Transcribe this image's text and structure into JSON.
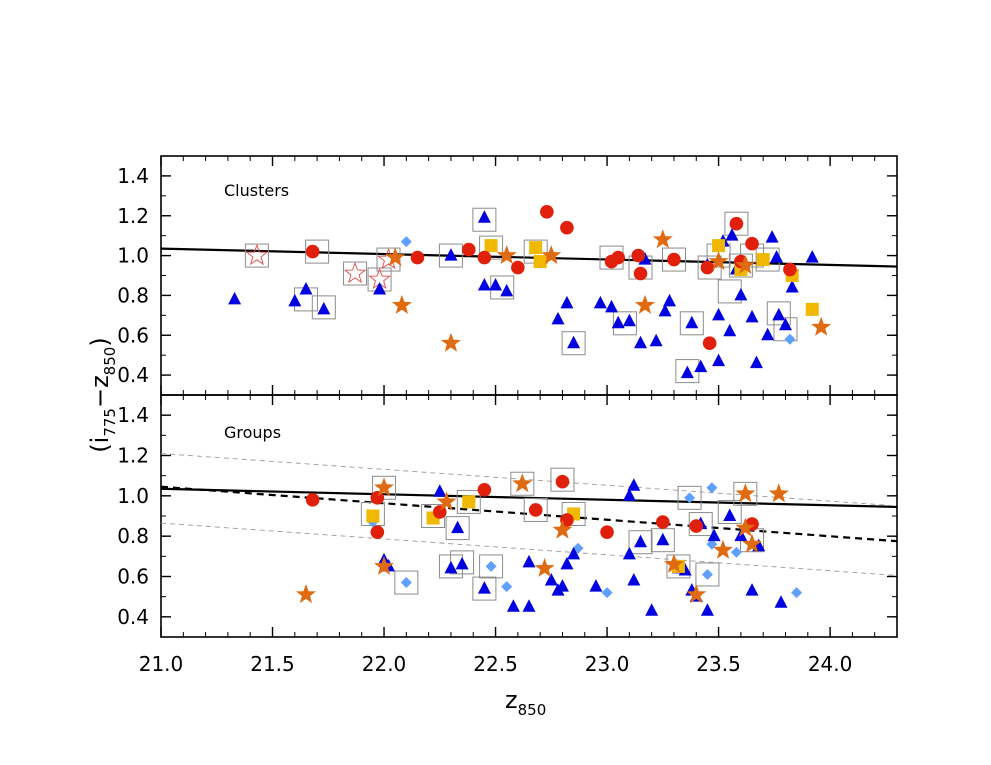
{
  "chart_data": {
    "type": "scatter",
    "xlabel": "z",
    "xlabel_sub": "850",
    "ylabel_parts": [
      "(i",
      "775",
      "−z",
      "850",
      ")"
    ],
    "xlim": [
      21.0,
      24.3
    ],
    "ylim": [
      0.3,
      1.5
    ],
    "xticks": [
      "21.0",
      "21.5",
      "22.0",
      "22.5",
      "23.0",
      "23.5",
      "24.0"
    ],
    "yticks": [
      "0.4",
      "0.6",
      "0.8",
      "1.0",
      "1.2",
      "1.4"
    ],
    "colors": {
      "triangle": "#0000e0",
      "circle": "#e0200a",
      "star": "#e06a10",
      "square": "#f0b800",
      "diamond": "#5fa0ff",
      "box": "#8c8c8c",
      "hollow_star": "#e05a5a"
    },
    "panels": [
      {
        "label": "Clusters",
        "lines": [
          {
            "name": "cluster-fit",
            "style": "solid",
            "x": [
              21.0,
              24.3
            ],
            "y": [
              1.035,
              0.945
            ]
          }
        ],
        "points": {
          "triangle": [
            [
              21.33,
              0.78
            ],
            [
              21.6,
              0.77
            ],
            [
              21.65,
              0.83
            ],
            [
              21.73,
              0.73
            ],
            [
              21.98,
              0.83
            ],
            [
              22.3,
              1.0
            ],
            [
              22.45,
              1.19
            ],
            [
              22.45,
              0.85
            ],
            [
              22.5,
              0.85
            ],
            [
              22.55,
              0.82
            ],
            [
              22.78,
              0.68
            ],
            [
              22.82,
              0.76
            ],
            [
              22.85,
              0.56
            ],
            [
              22.97,
              0.76
            ],
            [
              23.02,
              0.74
            ],
            [
              23.05,
              0.66
            ],
            [
              23.1,
              0.67
            ],
            [
              23.15,
              0.56
            ],
            [
              23.17,
              0.98
            ],
            [
              23.22,
              0.57
            ],
            [
              23.26,
              0.72
            ],
            [
              23.28,
              0.77
            ],
            [
              23.36,
              0.41
            ],
            [
              23.38,
              0.66
            ],
            [
              23.42,
              0.44
            ],
            [
              23.45,
              0.95
            ],
            [
              23.5,
              0.7
            ],
            [
              23.52,
              1.07
            ],
            [
              23.55,
              0.62
            ],
            [
              23.56,
              1.1
            ],
            [
              23.58,
              0.93
            ],
            [
              23.6,
              0.8
            ],
            [
              23.65,
              0.69
            ],
            [
              23.67,
              0.46
            ],
            [
              23.72,
              0.6
            ],
            [
              23.74,
              1.09
            ],
            [
              23.76,
              0.99
            ],
            [
              23.77,
              0.7
            ],
            [
              23.8,
              0.65
            ],
            [
              23.83,
              0.84
            ],
            [
              23.92,
              0.99
            ],
            [
              23.5,
              0.47
            ]
          ],
          "circle": [
            [
              21.68,
              1.02
            ],
            [
              22.15,
              0.99
            ],
            [
              22.38,
              1.03
            ],
            [
              22.45,
              0.99
            ],
            [
              22.6,
              0.94
            ],
            [
              22.73,
              1.22
            ],
            [
              22.82,
              1.14
            ],
            [
              23.02,
              0.97
            ],
            [
              23.05,
              0.99
            ],
            [
              23.14,
              1.0
            ],
            [
              23.15,
              0.91
            ],
            [
              23.3,
              0.98
            ],
            [
              23.46,
              0.56
            ],
            [
              23.58,
              1.16
            ],
            [
              23.6,
              0.97
            ],
            [
              23.65,
              1.06
            ],
            [
              23.82,
              0.93
            ],
            [
              23.45,
              0.94
            ]
          ],
          "star": [
            [
              22.05,
              0.99
            ],
            [
              22.08,
              0.75
            ],
            [
              22.3,
              0.56
            ],
            [
              22.55,
              1.0
            ],
            [
              22.75,
              1.0
            ],
            [
              23.17,
              0.75
            ],
            [
              23.25,
              1.08
            ],
            [
              23.5,
              0.97
            ],
            [
              23.62,
              0.95
            ],
            [
              23.96,
              0.64
            ]
          ],
          "square": [
            [
              22.48,
              1.05
            ],
            [
              22.68,
              1.04
            ],
            [
              22.7,
              0.97
            ],
            [
              23.5,
              1.05
            ],
            [
              23.6,
              0.93
            ],
            [
              23.7,
              0.98
            ],
            [
              23.83,
              0.9
            ],
            [
              23.92,
              0.73
            ]
          ],
          "diamond": [
            [
              22.1,
              1.07
            ],
            [
              23.82,
              0.58
            ]
          ],
          "hollow_star": [
            [
              21.43,
              1.0
            ],
            [
              21.87,
              0.91
            ],
            [
              21.98,
              0.88
            ],
            [
              22.02,
              0.98
            ]
          ],
          "box": [
            [
              21.43,
              1.0
            ],
            [
              21.7,
              1.02
            ],
            [
              21.65,
              0.78
            ],
            [
              21.73,
              0.74
            ],
            [
              21.87,
              0.91
            ],
            [
              21.98,
              0.88
            ],
            [
              22.02,
              0.98
            ],
            [
              22.3,
              1.0
            ],
            [
              22.45,
              1.18
            ],
            [
              22.48,
              1.04
            ],
            [
              22.53,
              0.84
            ],
            [
              22.68,
              1.02
            ],
            [
              22.85,
              0.56
            ],
            [
              23.02,
              0.99
            ],
            [
              23.08,
              0.66
            ],
            [
              23.15,
              0.94
            ],
            [
              23.3,
              0.98
            ],
            [
              23.36,
              0.42
            ],
            [
              23.38,
              0.66
            ],
            [
              23.46,
              0.94
            ],
            [
              23.55,
              0.82
            ],
            [
              23.58,
              1.16
            ],
            [
              23.65,
              1.0
            ],
            [
              23.72,
              0.98
            ],
            [
              23.77,
              0.71
            ],
            [
              23.8,
              0.63
            ],
            [
              23.6,
              0.95
            ],
            [
              23.5,
              1.0
            ]
          ]
        }
      },
      {
        "label": "Groups",
        "lines": [
          {
            "name": "cluster-fit",
            "style": "solid",
            "x": [
              21.0,
              24.3
            ],
            "y": [
              1.035,
              0.945
            ]
          },
          {
            "name": "group-fit",
            "style": "dashed",
            "x": [
              21.0,
              24.3
            ],
            "y": [
              1.045,
              0.775
            ]
          },
          {
            "name": "upper-scatter",
            "style": "thin-dashed",
            "x": [
              21.0,
              24.3
            ],
            "y": [
              1.21,
              0.95
            ]
          },
          {
            "name": "lower-scatter",
            "style": "thin-dashed",
            "x": [
              21.0,
              24.3
            ],
            "y": [
              0.865,
              0.605
            ]
          }
        ],
        "points": {
          "triangle": [
            [
              22.0,
              0.68
            ],
            [
              22.02,
              0.65
            ],
            [
              22.25,
              1.02
            ],
            [
              22.3,
              0.64
            ],
            [
              22.33,
              0.84
            ],
            [
              22.35,
              0.66
            ],
            [
              22.45,
              0.54
            ],
            [
              22.58,
              0.45
            ],
            [
              22.65,
              0.45
            ],
            [
              22.65,
              0.67
            ],
            [
              22.75,
              0.58
            ],
            [
              22.78,
              0.53
            ],
            [
              22.8,
              0.55
            ],
            [
              22.82,
              0.66
            ],
            [
              22.85,
              0.71
            ],
            [
              22.95,
              0.55
            ],
            [
              23.1,
              1.0
            ],
            [
              23.12,
              1.05
            ],
            [
              23.15,
              0.77
            ],
            [
              23.2,
              0.43
            ],
            [
              23.25,
              0.78
            ],
            [
              23.32,
              0.64
            ],
            [
              23.4,
              0.5
            ],
            [
              23.45,
              0.43
            ],
            [
              23.48,
              0.8
            ],
            [
              23.55,
              0.9
            ],
            [
              23.6,
              0.8
            ],
            [
              23.65,
              0.53
            ],
            [
              23.68,
              0.75
            ],
            [
              23.78,
              0.47
            ],
            [
              23.42,
              0.86
            ],
            [
              23.38,
              0.53
            ],
            [
              23.35,
              0.63
            ],
            [
              23.12,
              0.58
            ],
            [
              23.1,
              0.71
            ]
          ],
          "circle": [
            [
              21.68,
              0.98
            ],
            [
              21.97,
              0.99
            ],
            [
              21.97,
              0.82
            ],
            [
              22.25,
              0.92
            ],
            [
              22.45,
              1.03
            ],
            [
              22.68,
              0.93
            ],
            [
              22.8,
              1.07
            ],
            [
              22.82,
              0.88
            ],
            [
              23.0,
              0.82
            ],
            [
              23.25,
              0.87
            ],
            [
              23.4,
              0.85
            ],
            [
              23.65,
              0.86
            ]
          ],
          "star": [
            [
              21.65,
              0.51
            ],
            [
              22.0,
              1.04
            ],
            [
              22.0,
              0.65
            ],
            [
              22.28,
              0.97
            ],
            [
              22.62,
              1.06
            ],
            [
              22.72,
              0.64
            ],
            [
              22.8,
              0.83
            ],
            [
              23.3,
              0.66
            ],
            [
              23.4,
              0.51
            ],
            [
              23.52,
              0.73
            ],
            [
              23.62,
              1.01
            ],
            [
              23.62,
              0.84
            ],
            [
              23.77,
              1.01
            ],
            [
              23.65,
              0.76
            ]
          ],
          "square": [
            [
              21.95,
              0.9
            ],
            [
              22.22,
              0.89
            ],
            [
              22.38,
              0.97
            ],
            [
              22.85,
              0.91
            ],
            [
              23.32,
              0.65
            ]
          ],
          "diamond": [
            [
              21.95,
              0.87
            ],
            [
              22.1,
              0.57
            ],
            [
              22.48,
              0.65
            ],
            [
              22.55,
              0.55
            ],
            [
              22.87,
              0.74
            ],
            [
              23.0,
              0.52
            ],
            [
              23.37,
              0.99
            ],
            [
              23.45,
              0.61
            ],
            [
              23.47,
              1.04
            ],
            [
              23.47,
              0.76
            ],
            [
              23.85,
              0.52
            ],
            [
              23.58,
              0.72
            ]
          ],
          "hollow_star": [],
          "box": [
            [
              21.95,
              0.91
            ],
            [
              22.0,
              1.04
            ],
            [
              22.1,
              0.57
            ],
            [
              22.22,
              0.9
            ],
            [
              22.3,
              0.65
            ],
            [
              22.35,
              0.67
            ],
            [
              22.38,
              0.97
            ],
            [
              22.33,
              0.84
            ],
            [
              22.48,
              0.65
            ],
            [
              22.45,
              0.54
            ],
            [
              22.62,
              1.06
            ],
            [
              22.68,
              0.93
            ],
            [
              22.8,
              1.08
            ],
            [
              22.85,
              0.91
            ],
            [
              23.15,
              0.77
            ],
            [
              23.25,
              0.78
            ],
            [
              23.32,
              0.65
            ],
            [
              23.37,
              0.99
            ],
            [
              23.42,
              0.86
            ],
            [
              23.45,
              0.61
            ],
            [
              23.55,
              0.92
            ],
            [
              23.62,
              1.01
            ],
            [
              23.65,
              0.78
            ]
          ]
        }
      }
    ]
  }
}
